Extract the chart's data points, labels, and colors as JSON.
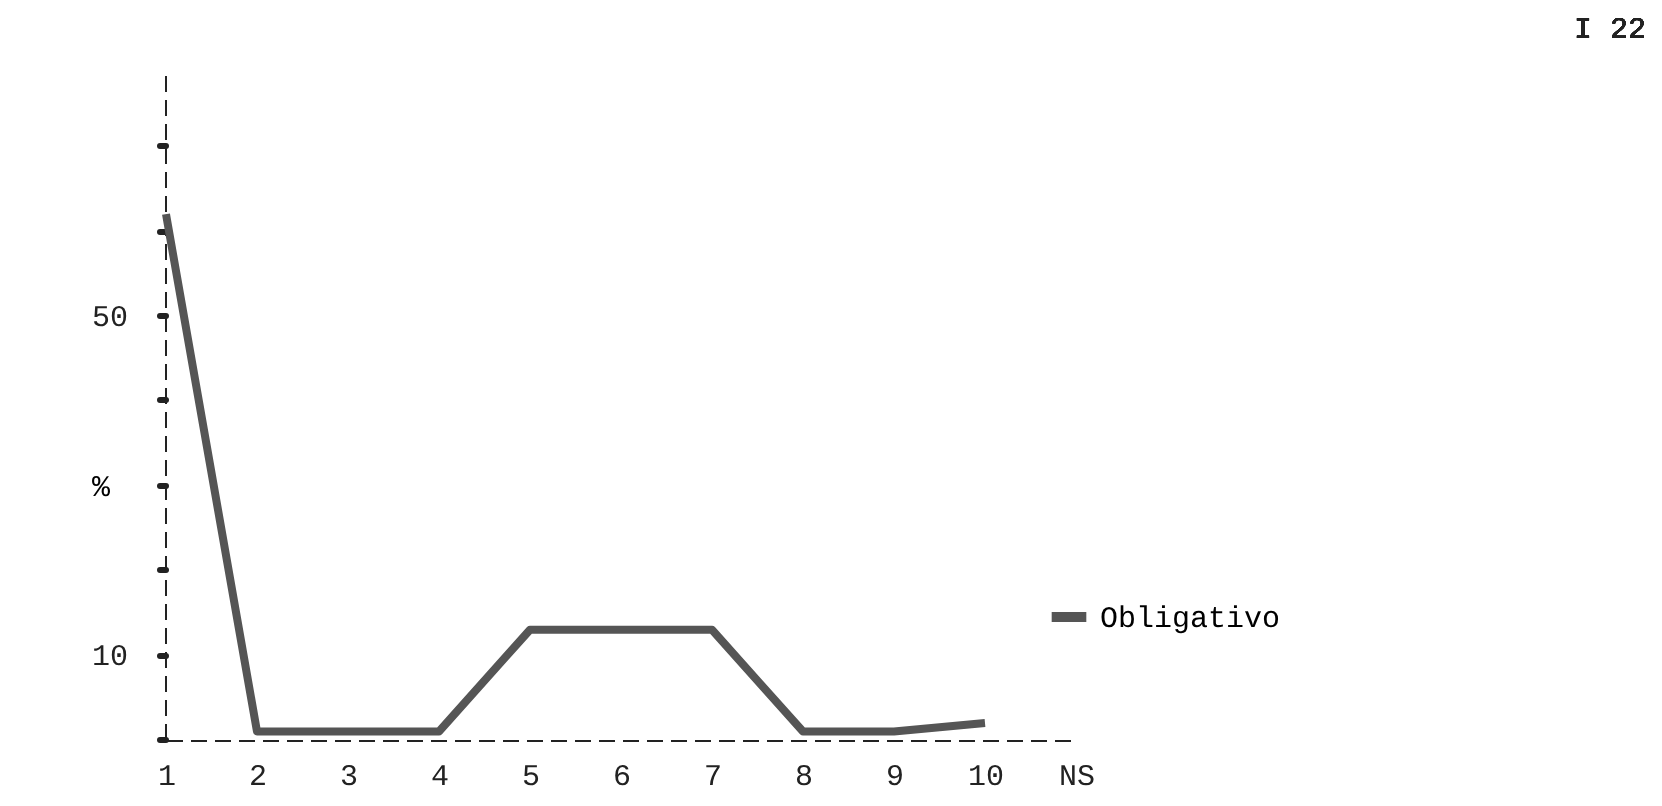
{
  "chart_data": {
    "type": "line",
    "ylabel": "%",
    "annotations": [
      "I 22"
    ],
    "categories": [
      "1",
      "2",
      "3",
      "4",
      "5",
      "6",
      "7",
      "8",
      "9",
      "10",
      "NS"
    ],
    "series": [
      {
        "name": "Obligativo",
        "color": "#555555",
        "values": [
          62,
          1,
          1,
          1,
          13,
          13,
          13,
          1,
          1,
          2,
          null
        ]
      }
    ],
    "ylim": [
      0,
      79
    ],
    "yticks": [
      {
        "value": 0,
        "label": null
      },
      10,
      {
        "value": 20,
        "label": null
      },
      {
        "value": 30,
        "label": null
      },
      {
        "value": 40,
        "label": null
      },
      50,
      {
        "value": 60,
        "label": null
      },
      {
        "value": 70,
        "label": null
      }
    ],
    "grid": false,
    "legend": "right",
    "marker": "none",
    "line_style": "solid"
  }
}
